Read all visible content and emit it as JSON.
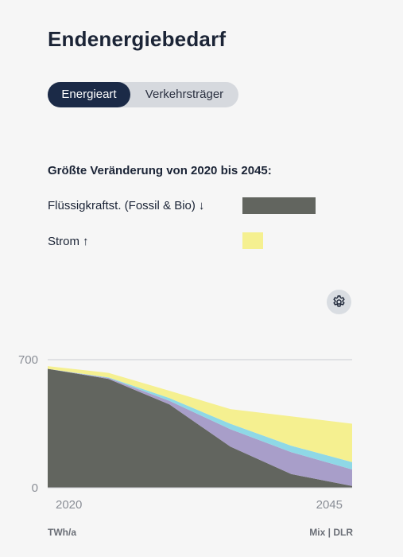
{
  "title": "Endenergiebedarf",
  "toggle": {
    "options": [
      "Energieart",
      "Verkehrsträger"
    ],
    "selected": "Energieart"
  },
  "changes": {
    "heading": "Größte Veränderung von 2020 bis 2045:",
    "items": [
      {
        "label": "Flüssigkraftst. (Fossil & Bio)",
        "arrow": "↓",
        "color": "#62655f",
        "swatch_width_rel": 1.0
      },
      {
        "label": "Strom",
        "arrow": "↑",
        "color": "#f5f090",
        "swatch_width_rel": 0.28
      }
    ]
  },
  "settings_icon": "gear-icon",
  "chart_data": {
    "type": "area",
    "stacked": true,
    "x": [
      2020,
      2025,
      2030,
      2035,
      2040,
      2045
    ],
    "x_tick_labels": [
      "2020",
      "2045"
    ],
    "ylim": [
      0,
      700
    ],
    "y_ticks": [
      0,
      700
    ],
    "unit_label": "TWh/a",
    "source": "Mix | DLR",
    "series": [
      {
        "name": "Flüssigkraftst. (Fossil & Bio)",
        "color": "#62655f",
        "values": [
          650,
          595,
          455,
          225,
          75,
          10
        ]
      },
      {
        "name": "",
        "color": "#a89ec9",
        "values": [
          0,
          5,
          20,
          95,
          120,
          90
        ]
      },
      {
        "name": "",
        "color": "#8fd8e6",
        "values": [
          0,
          3,
          15,
          30,
          35,
          40
        ]
      },
      {
        "name": "Strom",
        "color": "#f5f090",
        "values": [
          15,
          25,
          40,
          80,
          160,
          210
        ]
      }
    ]
  }
}
